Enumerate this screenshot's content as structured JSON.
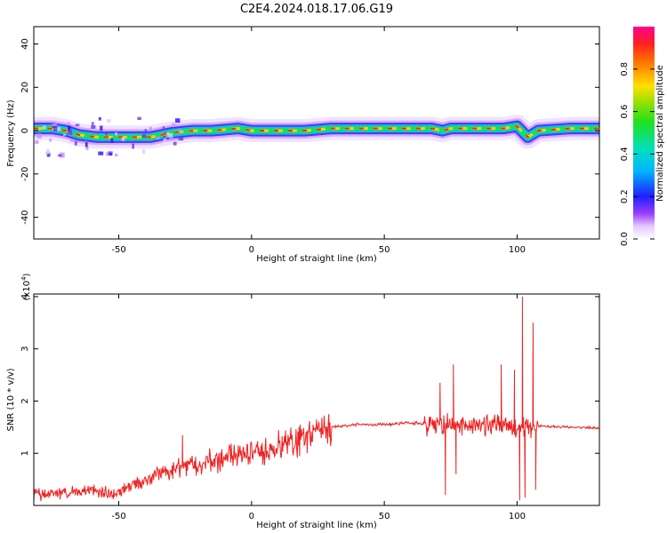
{
  "figure_title": "C2E4.2024.018.17.06.G19",
  "chart_data": [
    {
      "type": "heatmap",
      "xlabel": "Height of straight line (km)",
      "ylabel": "Frequency (Hz)",
      "xlim": [
        -82,
        131
      ],
      "ylim": [
        -50,
        48
      ],
      "xticks": [
        -50,
        0,
        50,
        100
      ],
      "yticks": [
        -40,
        -20,
        0,
        20,
        40
      ],
      "colorbar": {
        "label": "Normalized spectral amplitude",
        "range": [
          0,
          1
        ],
        "ticks": [
          0.0,
          0.2,
          0.4,
          0.6,
          0.8
        ],
        "tick_labels": [
          "0.0",
          "0.2",
          "0.4",
          "0.6",
          "0.8"
        ]
      },
      "ridge": [
        {
          "x": -82,
          "f": 1
        },
        {
          "x": -75,
          "f": 1
        },
        {
          "x": -70,
          "f": 0
        },
        {
          "x": -65,
          "f": -2
        },
        {
          "x": -58,
          "f": -3
        },
        {
          "x": -52,
          "f": -3
        },
        {
          "x": -45,
          "f": -3
        },
        {
          "x": -38,
          "f": -3
        },
        {
          "x": -30,
          "f": -1
        },
        {
          "x": -22,
          "f": 0
        },
        {
          "x": -15,
          "f": 0
        },
        {
          "x": -5,
          "f": 1
        },
        {
          "x": 0,
          "f": 0
        },
        {
          "x": 10,
          "f": 0
        },
        {
          "x": 20,
          "f": 0
        },
        {
          "x": 30,
          "f": 1
        },
        {
          "x": 40,
          "f": 1
        },
        {
          "x": 50,
          "f": 1
        },
        {
          "x": 60,
          "f": 1
        },
        {
          "x": 68,
          "f": 1
        },
        {
          "x": 72,
          "f": 0
        },
        {
          "x": 75,
          "f": 1
        },
        {
          "x": 85,
          "f": 1
        },
        {
          "x": 90,
          "f": 1
        },
        {
          "x": 95,
          "f": 1
        },
        {
          "x": 100,
          "f": 2
        },
        {
          "x": 104,
          "f": -3
        },
        {
          "x": 108,
          "f": 0
        },
        {
          "x": 120,
          "f": 1
        },
        {
          "x": 131,
          "f": 1
        }
      ]
    },
    {
      "type": "line",
      "xlabel": "Height of straight line (km)",
      "ylabel": "SNR (10 * v/v)",
      "y_multiplier": "(x10",
      "y_multiplier_exp": "4",
      "y_multiplier_close": ")",
      "xlim": [
        -82,
        131
      ],
      "ylim": [
        0,
        4.05
      ],
      "xticks": [
        -50,
        0,
        50,
        100
      ],
      "yticks": [
        1,
        2,
        3,
        4
      ],
      "color": "#ee2222",
      "envelope": [
        {
          "x": -82,
          "y": 0.2
        },
        {
          "x": -70,
          "y": 0.25
        },
        {
          "x": -60,
          "y": 0.3
        },
        {
          "x": -52,
          "y": 0.2
        },
        {
          "x": -45,
          "y": 0.4
        },
        {
          "x": -35,
          "y": 0.6
        },
        {
          "x": -25,
          "y": 0.75
        },
        {
          "x": -15,
          "y": 0.85
        },
        {
          "x": -5,
          "y": 0.95
        },
        {
          "x": 5,
          "y": 1.05
        },
        {
          "x": 15,
          "y": 1.2
        },
        {
          "x": 25,
          "y": 1.4
        },
        {
          "x": 30,
          "y": 1.5
        },
        {
          "x": 40,
          "y": 1.55
        },
        {
          "x": 50,
          "y": 1.55
        },
        {
          "x": 60,
          "y": 1.58
        },
        {
          "x": 68,
          "y": 1.55
        },
        {
          "x": 80,
          "y": 1.55
        },
        {
          "x": 90,
          "y": 1.55
        },
        {
          "x": 100,
          "y": 1.5
        },
        {
          "x": 108,
          "y": 1.52
        },
        {
          "x": 120,
          "y": 1.5
        },
        {
          "x": 131,
          "y": 1.48
        }
      ],
      "spikes": [
        {
          "x": -26,
          "y": 1.35
        },
        {
          "x": 71,
          "y": 2.35
        },
        {
          "x": 73,
          "y": 0.2
        },
        {
          "x": 76,
          "y": 2.7
        },
        {
          "x": 77,
          "y": 0.6
        },
        {
          "x": 94,
          "y": 2.7
        },
        {
          "x": 99,
          "y": 2.6
        },
        {
          "x": 101,
          "y": 0.1
        },
        {
          "x": 102,
          "y": 4.0
        },
        {
          "x": 103,
          "y": 0.15
        },
        {
          "x": 106,
          "y": 3.5
        },
        {
          "x": 107,
          "y": 0.3
        }
      ]
    }
  ]
}
